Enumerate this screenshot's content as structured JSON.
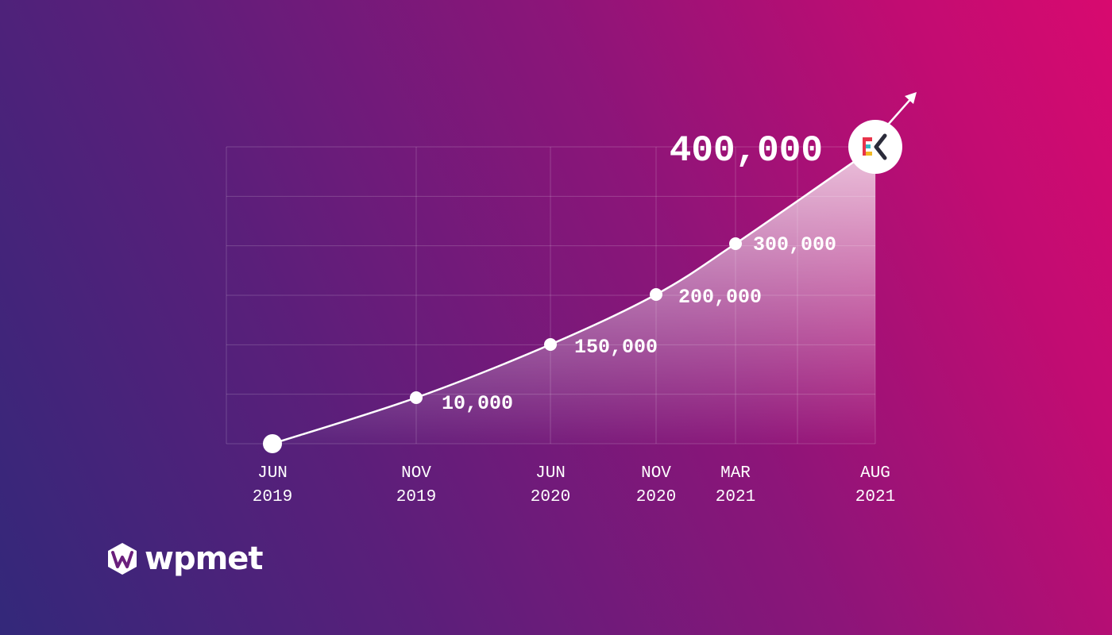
{
  "chart_data": {
    "type": "line",
    "points": [
      {
        "month": "JUN",
        "year": "2019",
        "value": 0,
        "label": ""
      },
      {
        "month": "NOV",
        "year": "2019",
        "value": 10000,
        "label": "10,000"
      },
      {
        "month": "JUN",
        "year": "2020",
        "value": 150000,
        "label": "150,000"
      },
      {
        "month": "NOV",
        "year": "2020",
        "value": 200000,
        "label": "200,000"
      },
      {
        "month": "MAR",
        "year": "2021",
        "value": 300000,
        "label": "300,000"
      },
      {
        "month": "AUG",
        "year": "2021",
        "value": 400000,
        "label": "400,000"
      }
    ],
    "grid": true,
    "fill_under_curve": true,
    "trend_arrow": true
  },
  "brand": {
    "name": "wpmet",
    "marker_icon": "elementskit-logo-icon",
    "logo_icon": "wpmet-logo-icon"
  },
  "colors": {
    "text": "#ffffff",
    "marker_red": "#e8334a",
    "marker_teal": "#36b8c2",
    "marker_yellow": "#f2b824"
  }
}
